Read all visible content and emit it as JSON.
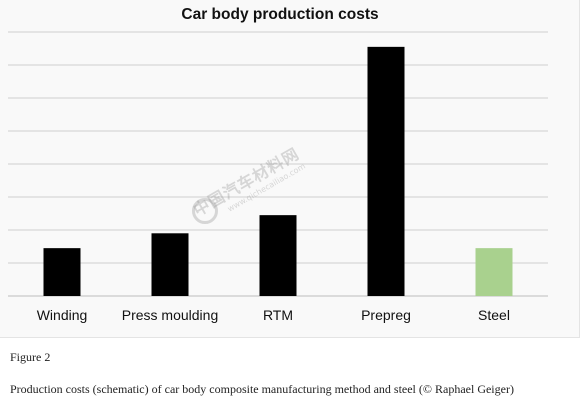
{
  "figure": {
    "label": "Figure 2",
    "caption": "Production costs (schematic) of car body composite manufacturing method and steel (© Raphael Geiger)"
  },
  "watermark": {
    "text": "中国汽车材料网",
    "url": "www.qichecailiao.com"
  },
  "colors": {
    "bar_default": "#000000",
    "bar_steel": "#a9d18e",
    "grid": "#d0d0d0"
  },
  "chart_data": {
    "type": "bar",
    "title": "Car body production costs",
    "xlabel": "",
    "ylabel": "",
    "categories": [
      "Winding",
      "Press moulding",
      "RTM",
      "Prepreg",
      "Steel"
    ],
    "values": [
      1.45,
      1.9,
      2.45,
      7.55,
      1.45
    ],
    "bar_colors": [
      "#000000",
      "#000000",
      "#000000",
      "#000000",
      "#a9d18e"
    ],
    "ylim": [
      0,
      8
    ],
    "grid": true,
    "yticks_shown": false,
    "legend": "none"
  }
}
